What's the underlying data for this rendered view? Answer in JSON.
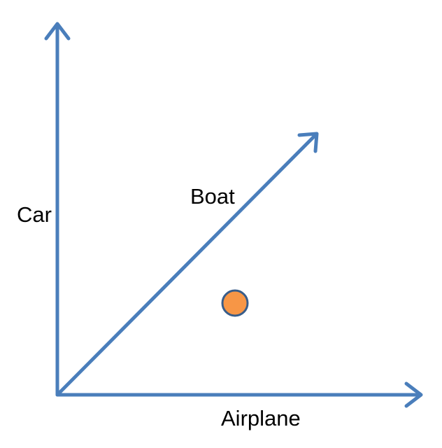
{
  "diagram": {
    "labels": {
      "vertical_axis": "Car",
      "diagonal_axis": "Boat",
      "horizontal_axis": "Airplane"
    },
    "colors": {
      "axis": "#4a7ebb",
      "point_fill": "#f79646",
      "point_stroke": "#385d8a",
      "text": "#000000",
      "background": "#ffffff"
    },
    "elements": {
      "axes": [
        "car-axis",
        "boat-axis",
        "airplane-axis"
      ],
      "points": [
        "data-point"
      ]
    }
  }
}
